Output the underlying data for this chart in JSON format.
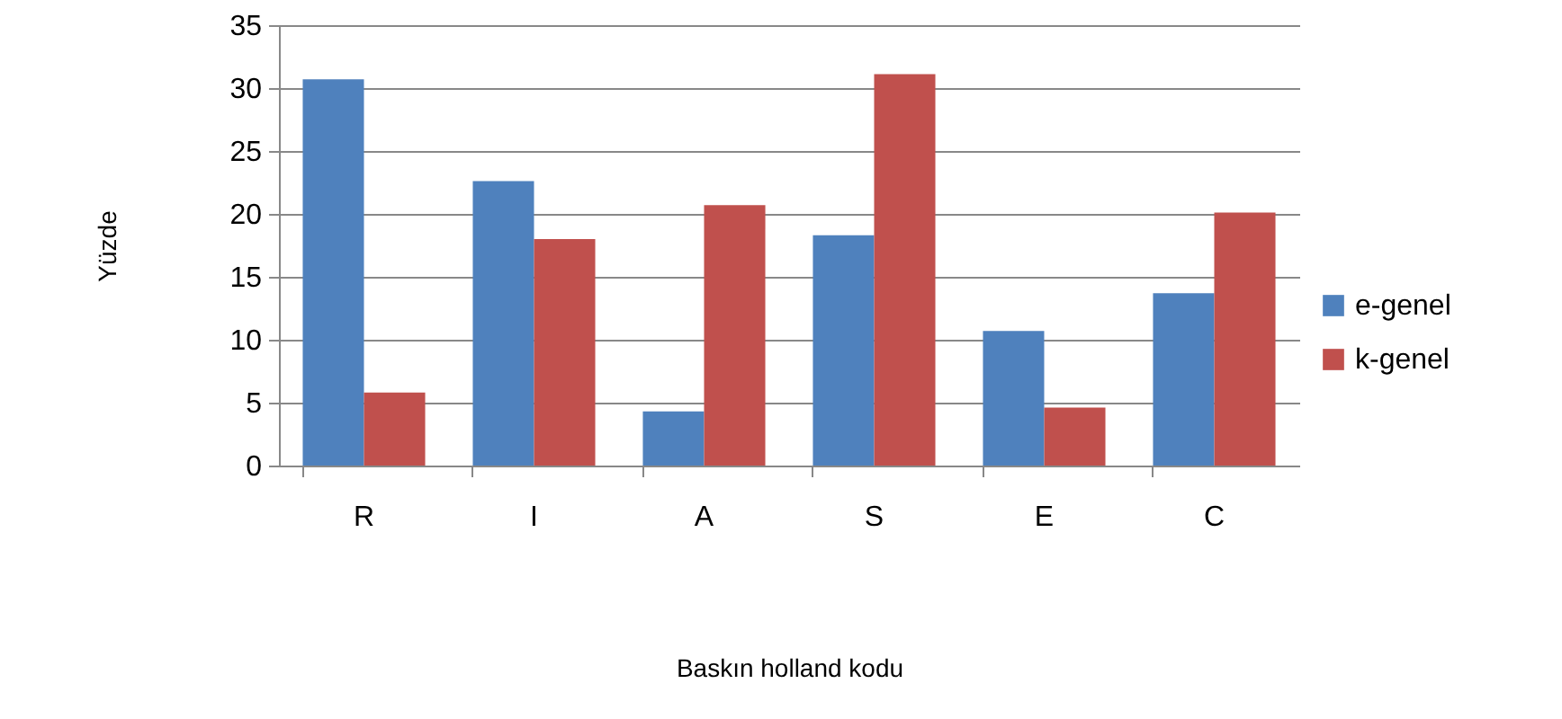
{
  "chart_data": {
    "type": "bar",
    "xlabel": "Baskın holland kodu",
    "ylabel": "Yüzde",
    "categories": [
      "R",
      "I",
      "A",
      "S",
      "E",
      "C"
    ],
    "series": [
      {
        "name": "e-genel",
        "color": "#4f81bd",
        "values": [
          30.7,
          22.6,
          4.3,
          18.3,
          10.7,
          13.7
        ]
      },
      {
        "name": "k-genel",
        "color": "#c0504d",
        "values": [
          5.8,
          18.0,
          20.7,
          31.1,
          4.6,
          20.1
        ]
      }
    ],
    "ylim": [
      0,
      35
    ],
    "yticks": [
      0,
      5,
      10,
      15,
      20,
      25,
      30,
      35
    ],
    "grid": "y",
    "legend": "right"
  }
}
